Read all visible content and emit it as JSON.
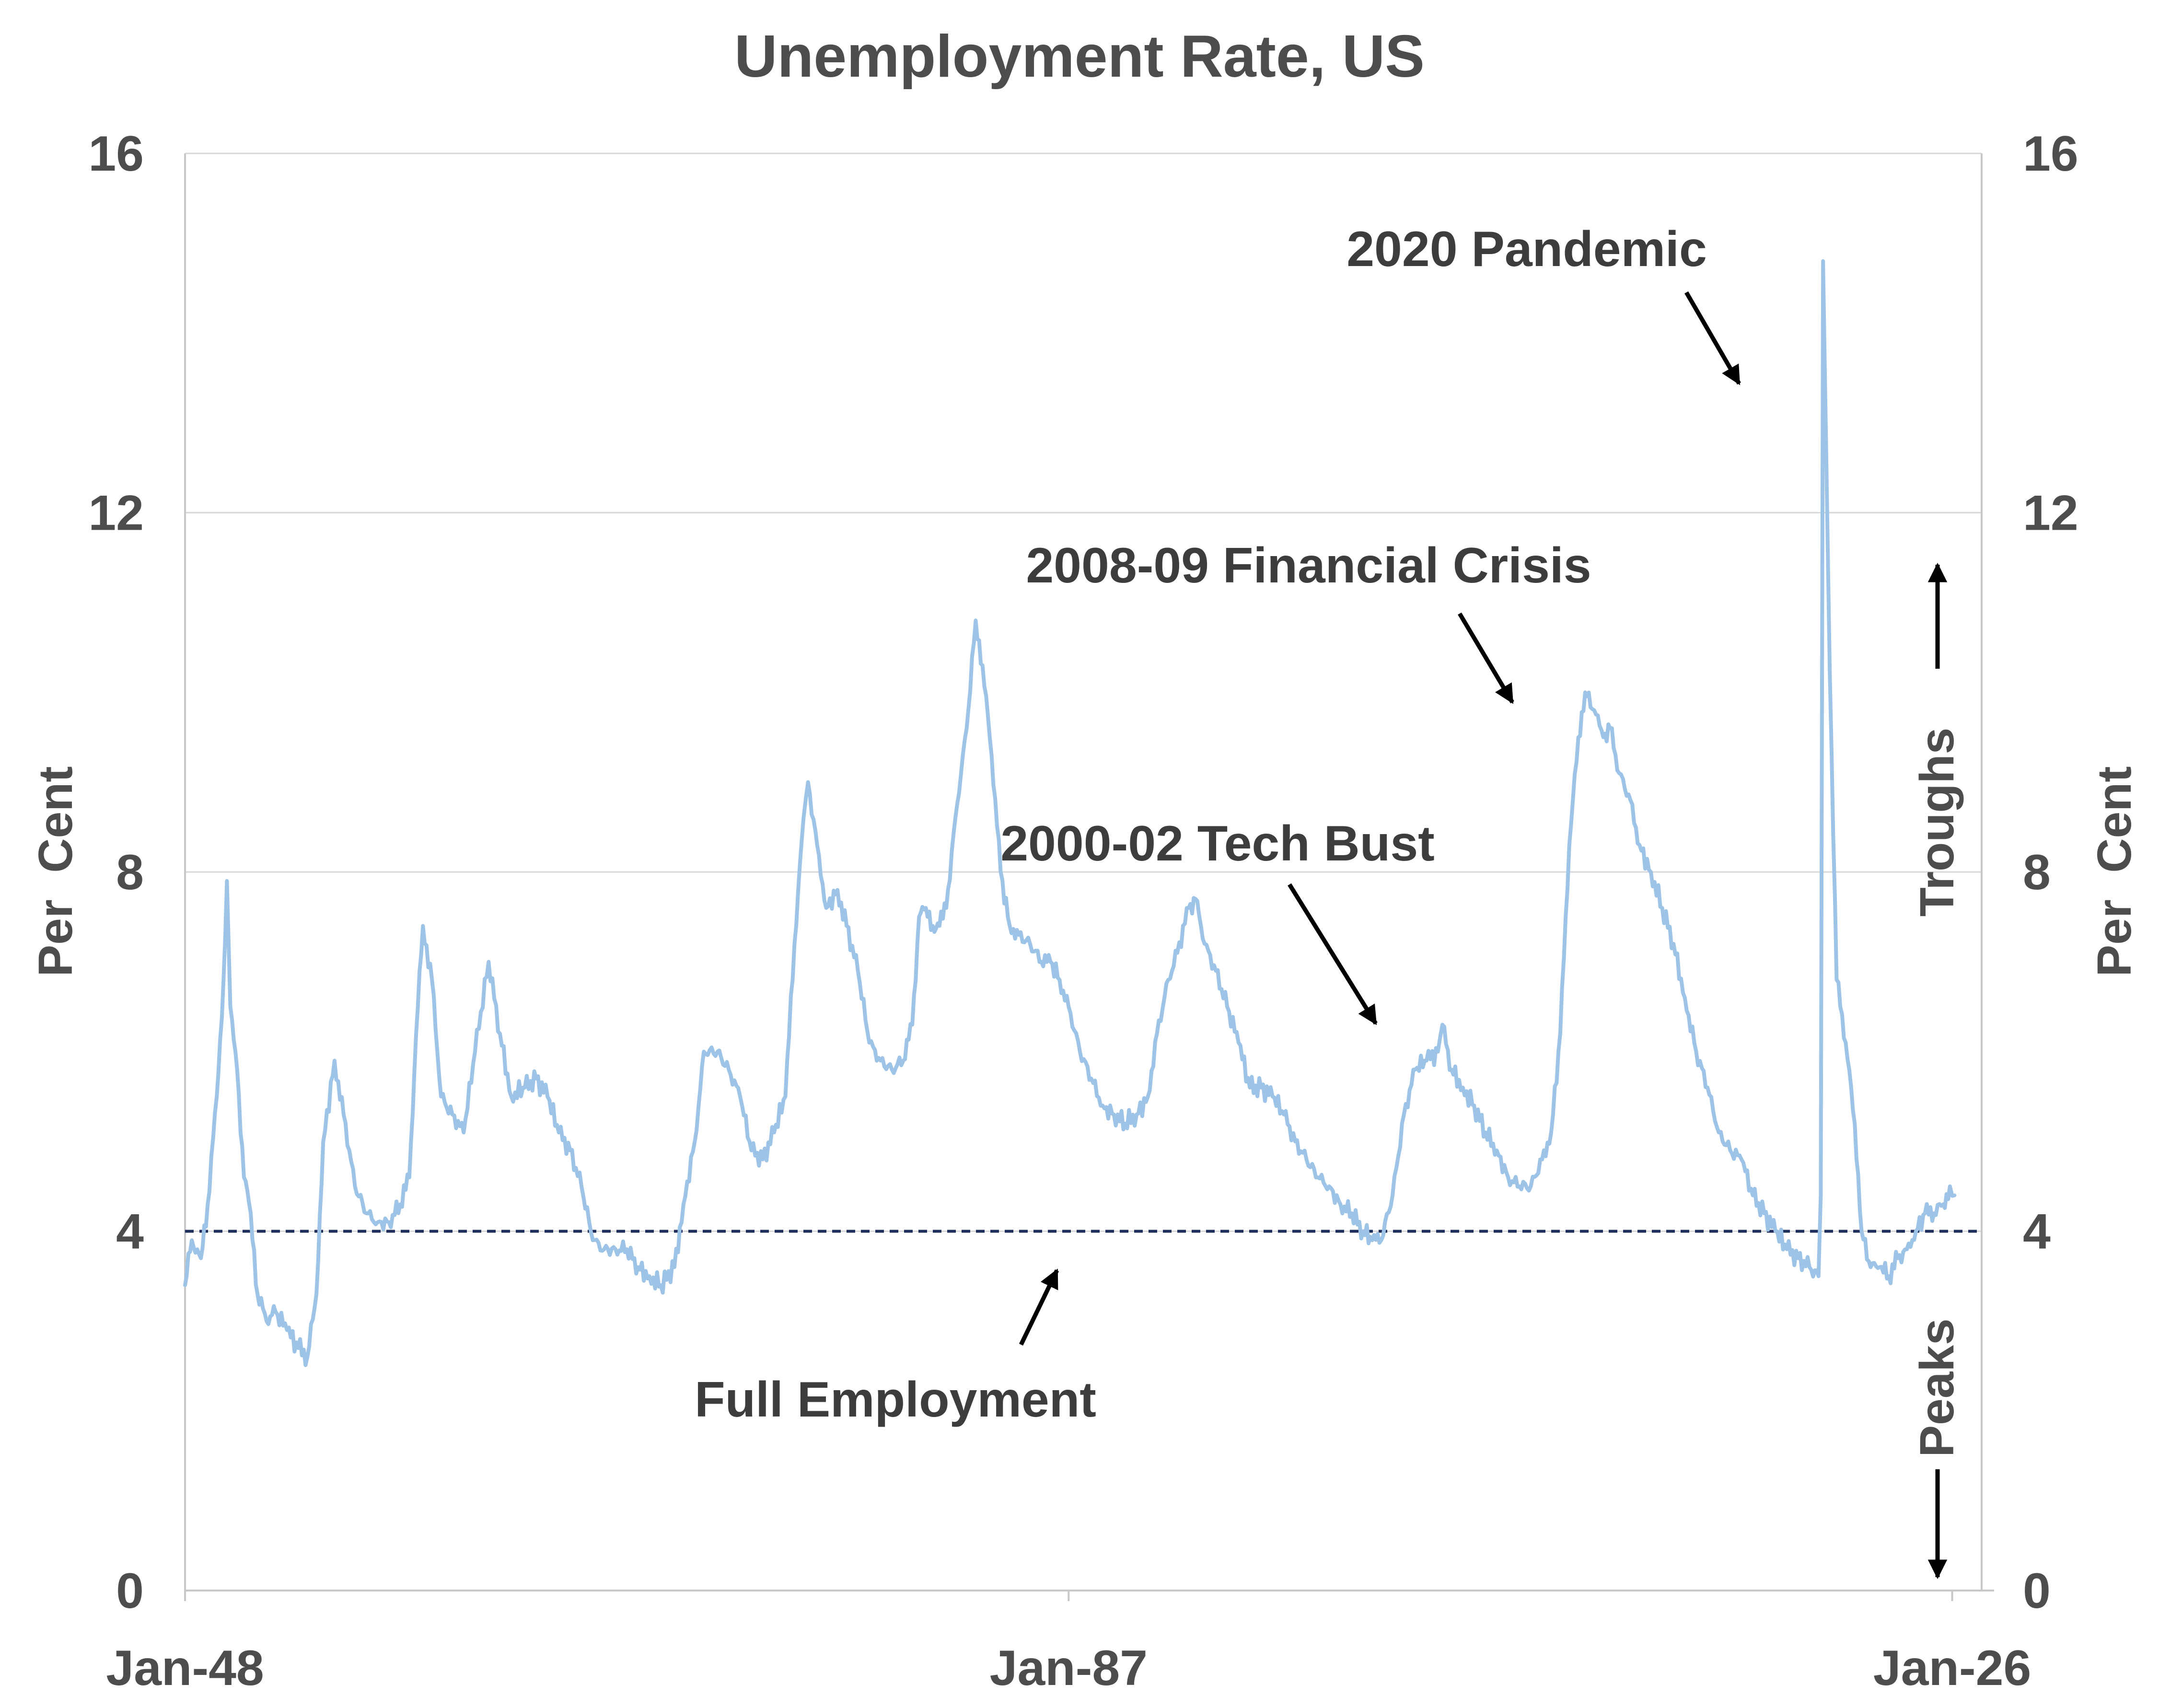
{
  "chart_data": {
    "type": "line",
    "title": "Unemployment Rate, US",
    "ylabel_left": "Per  Cent",
    "ylabel_right": "Per  Cent",
    "y_ticks": [
      "0",
      "4",
      "8",
      "12",
      "16"
    ],
    "x_ticks": [
      "Jan-48",
      "Jan-87",
      "Jan-26"
    ],
    "ylim": [
      0,
      16
    ],
    "xlim": [
      1948,
      2027.3
    ],
    "grid": "horizontal",
    "right_axis_notes": {
      "up": "Troughs",
      "down": "Peaks"
    },
    "reference_line": {
      "y": 4,
      "label": "Full Employment",
      "style": "dashed",
      "color": "#1f2d5a"
    },
    "annotations": [
      {
        "text": "2020 Pandemic",
        "x": 2020.3,
        "y": 13.2
      },
      {
        "text": "2008-09 Financial Crisis",
        "x": 2009.2,
        "y": 9.8
      },
      {
        "text": "2000-02 Tech Bust",
        "x": 2003.5,
        "y": 6.3
      }
    ],
    "series": [
      {
        "color": "#9dc3e6",
        "points": [
          [
            1948.0,
            3.4
          ],
          [
            1948.3,
            3.9
          ],
          [
            1948.7,
            3.7
          ],
          [
            1949.0,
            4.3
          ],
          [
            1949.4,
            5.5
          ],
          [
            1949.7,
            6.8
          ],
          [
            1949.85,
            7.9
          ],
          [
            1950.0,
            6.5
          ],
          [
            1950.3,
            5.8
          ],
          [
            1950.6,
            4.6
          ],
          [
            1950.9,
            4.2
          ],
          [
            1951.2,
            3.3
          ],
          [
            1951.6,
            3.0
          ],
          [
            1952.0,
            3.1
          ],
          [
            1952.5,
            2.9
          ],
          [
            1953.0,
            2.7
          ],
          [
            1953.4,
            2.6
          ],
          [
            1953.8,
            3.3
          ],
          [
            1954.1,
            5.0
          ],
          [
            1954.6,
            5.9
          ],
          [
            1955.0,
            5.3
          ],
          [
            1955.5,
            4.5
          ],
          [
            1956.0,
            4.2
          ],
          [
            1956.5,
            4.1
          ],
          [
            1957.0,
            4.1
          ],
          [
            1957.5,
            4.3
          ],
          [
            1957.9,
            4.6
          ],
          [
            1958.2,
            6.2
          ],
          [
            1958.5,
            7.4
          ],
          [
            1958.9,
            6.8
          ],
          [
            1959.3,
            5.5
          ],
          [
            1959.8,
            5.3
          ],
          [
            1960.3,
            5.1
          ],
          [
            1960.8,
            6.0
          ],
          [
            1961.4,
            7.0
          ],
          [
            1961.9,
            6.2
          ],
          [
            1962.4,
            5.5
          ],
          [
            1963.0,
            5.6
          ],
          [
            1963.5,
            5.7
          ],
          [
            1964.0,
            5.5
          ],
          [
            1964.5,
            5.1
          ],
          [
            1965.0,
            4.9
          ],
          [
            1965.5,
            4.5
          ],
          [
            1966.0,
            3.9
          ],
          [
            1966.5,
            3.8
          ],
          [
            1967.0,
            3.8
          ],
          [
            1967.5,
            3.8
          ],
          [
            1968.0,
            3.6
          ],
          [
            1968.5,
            3.5
          ],
          [
            1969.0,
            3.4
          ],
          [
            1969.6,
            3.6
          ],
          [
            1970.0,
            4.3
          ],
          [
            1970.5,
            5.0
          ],
          [
            1970.9,
            6.0
          ],
          [
            1971.5,
            6.0
          ],
          [
            1972.0,
            5.8
          ],
          [
            1972.5,
            5.5
          ],
          [
            1973.0,
            4.9
          ],
          [
            1973.5,
            4.8
          ],
          [
            1974.0,
            5.1
          ],
          [
            1974.5,
            5.5
          ],
          [
            1974.9,
            7.2
          ],
          [
            1975.3,
            8.6
          ],
          [
            1975.5,
            9.0
          ],
          [
            1975.9,
            8.3
          ],
          [
            1976.3,
            7.6
          ],
          [
            1976.8,
            7.8
          ],
          [
            1977.2,
            7.4
          ],
          [
            1977.7,
            6.9
          ],
          [
            1978.2,
            6.1
          ],
          [
            1978.7,
            5.9
          ],
          [
            1979.2,
            5.8
          ],
          [
            1979.7,
            5.9
          ],
          [
            1980.1,
            6.3
          ],
          [
            1980.4,
            7.5
          ],
          [
            1980.7,
            7.6
          ],
          [
            1981.0,
            7.4
          ],
          [
            1981.3,
            7.4
          ],
          [
            1981.6,
            7.6
          ],
          [
            1982.0,
            8.6
          ],
          [
            1982.5,
            9.6
          ],
          [
            1982.9,
            10.8
          ],
          [
            1983.2,
            10.3
          ],
          [
            1983.6,
            9.3
          ],
          [
            1984.0,
            8.0
          ],
          [
            1984.4,
            7.4
          ],
          [
            1984.8,
            7.3
          ],
          [
            1985.3,
            7.2
          ],
          [
            1985.8,
            7.0
          ],
          [
            1986.2,
            7.0
          ],
          [
            1986.6,
            6.8
          ],
          [
            1987.0,
            6.5
          ],
          [
            1987.5,
            6.0
          ],
          [
            1988.0,
            5.7
          ],
          [
            1988.5,
            5.4
          ],
          [
            1989.0,
            5.3
          ],
          [
            1989.5,
            5.2
          ],
          [
            1990.0,
            5.3
          ],
          [
            1990.5,
            5.5
          ],
          [
            1990.9,
            6.2
          ],
          [
            1991.4,
            6.8
          ],
          [
            1991.8,
            7.1
          ],
          [
            1992.3,
            7.6
          ],
          [
            1992.6,
            7.7
          ],
          [
            1993.0,
            7.2
          ],
          [
            1993.5,
            6.9
          ],
          [
            1994.0,
            6.5
          ],
          [
            1994.5,
            6.1
          ],
          [
            1995.0,
            5.6
          ],
          [
            1995.5,
            5.6
          ],
          [
            1996.0,
            5.5
          ],
          [
            1996.5,
            5.3
          ],
          [
            1997.0,
            5.0
          ],
          [
            1997.5,
            4.8
          ],
          [
            1998.0,
            4.6
          ],
          [
            1998.5,
            4.5
          ],
          [
            1999.0,
            4.3
          ],
          [
            1999.5,
            4.2
          ],
          [
            2000.0,
            4.0
          ],
          [
            2000.4,
            3.9
          ],
          [
            2000.8,
            3.9
          ],
          [
            2001.3,
            4.4
          ],
          [
            2001.8,
            5.3
          ],
          [
            2002.3,
            5.8
          ],
          [
            2002.8,
            5.9
          ],
          [
            2003.3,
            6.0
          ],
          [
            2003.5,
            6.3
          ],
          [
            2003.9,
            5.8
          ],
          [
            2004.4,
            5.6
          ],
          [
            2004.9,
            5.4
          ],
          [
            2005.4,
            5.1
          ],
          [
            2005.9,
            4.9
          ],
          [
            2006.4,
            4.6
          ],
          [
            2006.9,
            4.5
          ],
          [
            2007.4,
            4.5
          ],
          [
            2007.9,
            4.8
          ],
          [
            2008.3,
            5.1
          ],
          [
            2008.7,
            6.2
          ],
          [
            2009.1,
            8.3
          ],
          [
            2009.5,
            9.5
          ],
          [
            2009.8,
            10.0
          ],
          [
            2010.2,
            9.8
          ],
          [
            2010.6,
            9.5
          ],
          [
            2010.9,
            9.6
          ],
          [
            2011.3,
            9.1
          ],
          [
            2011.8,
            8.8
          ],
          [
            2012.2,
            8.3
          ],
          [
            2012.7,
            8.0
          ],
          [
            2013.2,
            7.6
          ],
          [
            2013.7,
            7.2
          ],
          [
            2014.2,
            6.6
          ],
          [
            2014.7,
            6.0
          ],
          [
            2015.2,
            5.6
          ],
          [
            2015.7,
            5.1
          ],
          [
            2016.2,
            4.9
          ],
          [
            2016.7,
            4.8
          ],
          [
            2017.2,
            4.4
          ],
          [
            2017.7,
            4.2
          ],
          [
            2018.2,
            4.0
          ],
          [
            2018.7,
            3.8
          ],
          [
            2019.2,
            3.7
          ],
          [
            2019.7,
            3.6
          ],
          [
            2020.1,
            3.5
          ],
          [
            2020.2,
            4.4
          ],
          [
            2020.3,
            14.8
          ],
          [
            2020.6,
            10.2
          ],
          [
            2020.9,
            6.8
          ],
          [
            2021.3,
            6.1
          ],
          [
            2021.7,
            5.2
          ],
          [
            2022.0,
            4.0
          ],
          [
            2022.4,
            3.6
          ],
          [
            2022.8,
            3.6
          ],
          [
            2023.2,
            3.5
          ],
          [
            2023.6,
            3.7
          ],
          [
            2024.0,
            3.8
          ],
          [
            2024.4,
            4.0
          ],
          [
            2024.8,
            4.2
          ],
          [
            2025.2,
            4.2
          ],
          [
            2025.6,
            4.3
          ],
          [
            2025.9,
            4.5
          ],
          [
            2026.1,
            4.4
          ]
        ]
      }
    ]
  }
}
